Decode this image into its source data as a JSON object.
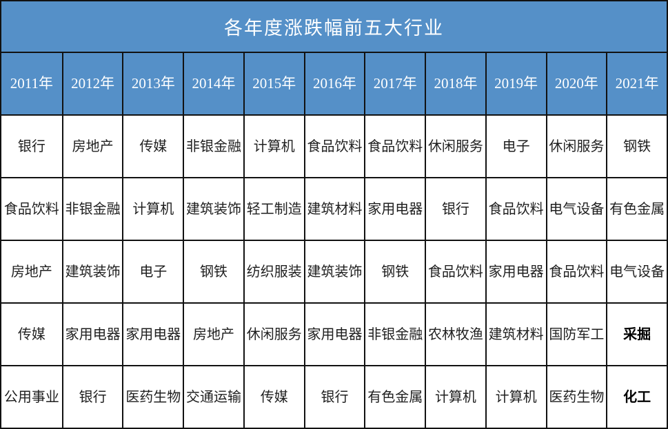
{
  "chart_data": {
    "type": "table",
    "title": "各年度涨跌幅前五大行业",
    "columns": [
      "2011年",
      "2012年",
      "2013年",
      "2014年",
      "2015年",
      "2016年",
      "2017年",
      "2018年",
      "2019年",
      "2020年",
      "2021年"
    ],
    "rows": [
      [
        "银行",
        "房地产",
        "传媒",
        "非银金融",
        "计算机",
        "食品饮料",
        "食品饮料",
        "休闲服务",
        "电子",
        "休闲服务",
        "钢铁"
      ],
      [
        "食品饮料",
        "非银金融",
        "计算机",
        "建筑装饰",
        "轻工制造",
        "建筑材料",
        "家用电器",
        "银行",
        "食品饮料",
        "电气设备",
        "有色金属"
      ],
      [
        "房地产",
        "建筑装饰",
        "电子",
        "钢铁",
        "纺织服装",
        "建筑装饰",
        "钢铁",
        "食品饮料",
        "家用电器",
        "食品饮料",
        "电气设备"
      ],
      [
        "传媒",
        "家用电器",
        "家用电器",
        "房地产",
        "休闲服务",
        "家用电器",
        "非银金融",
        "农林牧渔",
        "建筑材料",
        "国防军工",
        "采掘"
      ],
      [
        "公用事业",
        "银行",
        "医药生物",
        "交通运输",
        "传媒",
        "银行",
        "有色金属",
        "计算机",
        "计算机",
        "医药生物",
        "化工"
      ]
    ],
    "bold_cells": [
      {
        "row": 3,
        "col": 10,
        "label": "采掘"
      },
      {
        "row": 4,
        "col": 10,
        "label": "化工"
      }
    ],
    "legend_position": "none",
    "grid": "on"
  },
  "colors": {
    "header_bg": "#5590c8",
    "header_text": "#ffffff",
    "body_bg": "#ffffff",
    "body_text": "#1f1f1f",
    "bold_text": "#000000",
    "border": "#111111"
  }
}
